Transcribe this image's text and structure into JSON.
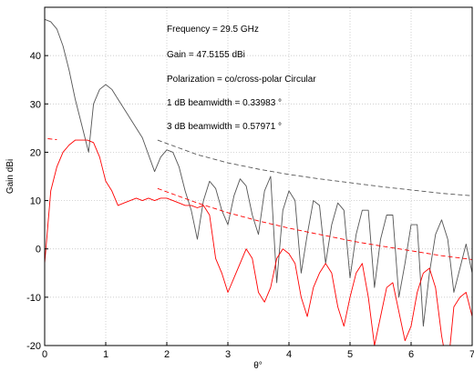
{
  "chart_data": {
    "type": "line",
    "xlabel": "θ°",
    "ylabel": "Gain dBi",
    "xlim": [
      0,
      7
    ],
    "ylim": [
      -20,
      50
    ],
    "xticks": [
      "0",
      "1",
      "2",
      "3",
      "4",
      "5",
      "6",
      "7"
    ],
    "yticks": [
      "-20",
      "-10",
      "0",
      "10",
      "20",
      "30",
      "40"
    ],
    "grid": true,
    "annotations": [
      "Frequency = 29.5 GHz",
      "Gain = 47.5155 dBi",
      "Polarization = co/cross-polar Circular",
      "1 dB beamwidth = 0.33983 °",
      "3 dB beamwidth = 0.57971 °"
    ],
    "series": [
      {
        "color": "#555555",
        "style": "solid",
        "x": [
          0,
          0.1,
          0.2,
          0.3,
          0.4,
          0.5,
          0.6,
          0.72,
          0.8,
          0.9,
          1.0,
          1.1,
          1.2,
          1.4,
          1.6,
          1.8,
          1.9,
          2.0,
          2.1,
          2.2,
          2.3,
          2.4,
          2.5,
          2.55,
          2.6,
          2.7,
          2.8,
          2.9,
          3.0,
          3.1,
          3.2,
          3.3,
          3.4,
          3.5,
          3.6,
          3.7,
          3.8,
          3.9,
          4.0,
          4.1,
          4.2,
          4.3,
          4.4,
          4.5,
          4.6,
          4.7,
          4.8,
          4.9,
          5.0,
          5.1,
          5.2,
          5.3,
          5.4,
          5.5,
          5.6,
          5.7,
          5.8,
          5.9,
          6.0,
          6.1,
          6.2,
          6.3,
          6.4,
          6.5,
          6.6,
          6.7,
          6.8,
          6.9,
          7.0
        ],
        "y": [
          47.5,
          47,
          45.5,
          42,
          37,
          31,
          26,
          20,
          30,
          33,
          34,
          33,
          31,
          27,
          23,
          16,
          19,
          20.5,
          20,
          17,
          12,
          8,
          2,
          6,
          10,
          14,
          12.5,
          8,
          5,
          11,
          14.5,
          13,
          7,
          3,
          12,
          15,
          -7,
          8,
          12,
          10,
          -5,
          3,
          10,
          9,
          -3,
          5,
          9.5,
          8,
          -6,
          3,
          8,
          8,
          -8,
          2,
          7,
          7,
          -10,
          -3,
          5,
          5,
          -16,
          -5,
          3,
          6,
          2,
          -9,
          -4,
          1,
          -5
        ]
      },
      {
        "color": "#ff0000",
        "style": "solid",
        "x": [
          0,
          0.1,
          0.2,
          0.3,
          0.4,
          0.5,
          0.6,
          0.7,
          0.8,
          0.9,
          1.0,
          1.1,
          1.2,
          1.3,
          1.4,
          1.5,
          1.6,
          1.7,
          1.8,
          1.9,
          2.0,
          2.1,
          2.2,
          2.3,
          2.4,
          2.5,
          2.6,
          2.7,
          2.8,
          2.9,
          3.0,
          3.1,
          3.2,
          3.3,
          3.4,
          3.5,
          3.6,
          3.7,
          3.8,
          3.9,
          4.0,
          4.1,
          4.2,
          4.3,
          4.4,
          4.5,
          4.6,
          4.7,
          4.8,
          4.9,
          5.0,
          5.1,
          5.2,
          5.3,
          5.4,
          5.5,
          5.6,
          5.7,
          5.8,
          5.9,
          6.0,
          6.1,
          6.2,
          6.3,
          6.4,
          6.5,
          6.6,
          6.7,
          6.8,
          6.9,
          7.0
        ],
        "y": [
          -3,
          12,
          17,
          20,
          21.5,
          22.5,
          22.5,
          22.5,
          22,
          19,
          14,
          12,
          9,
          9.5,
          10,
          10.5,
          10,
          10.5,
          10,
          10.5,
          10.5,
          10,
          9.5,
          9,
          9,
          8.5,
          9,
          7,
          -2,
          -5,
          -9,
          -6,
          -3,
          0,
          -2,
          -9,
          -11,
          -8,
          -2,
          0,
          -1,
          -3,
          -10,
          -14,
          -8,
          -5,
          -3,
          -5,
          -12,
          -16,
          -10,
          -5,
          -3,
          -10,
          -20,
          -14,
          -8,
          -7,
          -13,
          -19,
          -16,
          -9,
          -5,
          -4,
          -8,
          -18,
          -25,
          -12,
          -10,
          -9,
          -14
        ]
      },
      {
        "color": "#555555",
        "style": "dashed",
        "x": [
          1.85,
          2.5,
          3.0,
          3.5,
          4.0,
          4.5,
          5.0,
          5.5,
          6.0,
          6.5,
          7.0
        ],
        "y": [
          22.5,
          19.5,
          17.8,
          16.5,
          15.4,
          14.5,
          13.7,
          12.9,
          12.2,
          11.5,
          11
        ]
      },
      {
        "color": "#ff0000",
        "style": "dashed",
        "x": [
          1.85,
          2.5,
          3.0,
          3.5,
          4.0,
          4.5,
          5.0,
          5.5,
          6.0,
          6.5,
          7.0
        ],
        "y": [
          12.5,
          9.5,
          7.5,
          5.8,
          4.3,
          3,
          1.7,
          0.6,
          -0.4,
          -1.4,
          -2.2
        ]
      },
      {
        "color": "#ff0000",
        "style": "dashed",
        "x": [
          0.05,
          0.2
        ],
        "y": [
          22.8,
          22.6
        ]
      }
    ]
  }
}
